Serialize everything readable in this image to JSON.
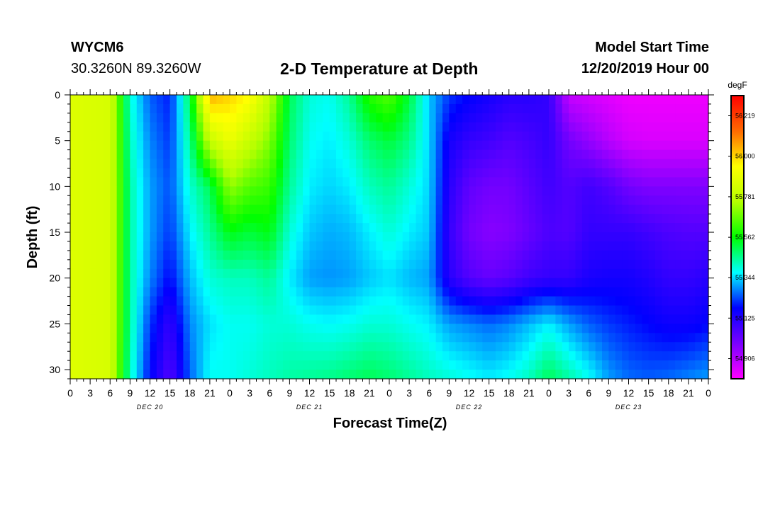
{
  "header": {
    "station": "WYCM6",
    "coords": "30.3260N 89.3260W",
    "title": "2-D Temperature at Depth",
    "start_label": "Model Start Time",
    "start_value": "12/20/2019 Hour 00"
  },
  "colors": {
    "colormap": [
      "#ff00ff",
      "#7a00ff",
      "#0000ff",
      "#00ffff",
      "#00ff00",
      "#b4ff00",
      "#ffff00",
      "#ff6a00",
      "#ff0000"
    ]
  },
  "chart_data": {
    "type": "heatmap",
    "title": "2-D Temperature at Depth",
    "xlabel": "Forecast Time(Z)",
    "ylabel": "Depth (ft)",
    "x_range_hours": [
      0,
      96
    ],
    "y_range_ft": [
      0,
      31
    ],
    "y_reversed": true,
    "x_tick_labels": [
      "0",
      "3",
      "6",
      "9",
      "12",
      "15",
      "18",
      "21",
      "0",
      "3",
      "6",
      "9",
      "12",
      "15",
      "18",
      "21",
      "0",
      "3",
      "6",
      "9",
      "12",
      "15",
      "18",
      "21",
      "0",
      "3",
      "6",
      "9",
      "12",
      "15",
      "18",
      "21",
      "0"
    ],
    "y_tick_values": [
      0,
      5,
      10,
      15,
      20,
      25,
      30
    ],
    "y_tick_labels": [
      "0",
      "5",
      "10",
      "15",
      "20",
      "25",
      "30"
    ],
    "date_labels": [
      {
        "label": "DEC 20",
        "hour": 12
      },
      {
        "label": "DEC 21",
        "hour": 36
      },
      {
        "label": "DEC 22",
        "hour": 60
      },
      {
        "label": "DEC 23",
        "hour": 84
      }
    ],
    "colorbar": {
      "unit": "degF",
      "min": 54.797,
      "max": 56.328,
      "labels": [
        "56.219",
        "56.000",
        "55.781",
        "55.562",
        "55.344",
        "55.125",
        "54.906"
      ],
      "label_values": [
        56.219,
        56.0,
        55.781,
        55.562,
        55.344,
        55.125,
        54.906
      ]
    },
    "depths_ft": [
      0,
      5,
      10,
      15,
      20,
      25,
      31
    ],
    "hours": [
      0,
      6,
      9,
      12,
      15,
      18,
      21,
      24,
      27,
      30,
      33,
      36,
      39,
      42,
      45,
      48,
      51,
      54,
      57,
      60,
      63,
      66,
      69,
      72,
      75,
      78,
      81,
      84,
      87,
      90,
      93,
      96
    ],
    "temperature_degF": [
      [
        55.86,
        55.86,
        55.86,
        55.86,
        55.86,
        55.86,
        55.86
      ],
      [
        55.84,
        55.84,
        55.84,
        55.84,
        55.84,
        55.84,
        55.84
      ],
      [
        55.4,
        55.42,
        55.44,
        55.44,
        55.44,
        55.44,
        55.42
      ],
      [
        55.25,
        55.28,
        55.3,
        55.3,
        55.28,
        55.22,
        55.18
      ],
      [
        55.2,
        55.22,
        55.24,
        55.22,
        55.18,
        55.1,
        55.05
      ],
      [
        55.5,
        55.45,
        55.4,
        55.36,
        55.32,
        55.28,
        55.25
      ],
      [
        56.05,
        55.8,
        55.5,
        55.45,
        55.4,
        55.35,
        55.38
      ],
      [
        56.0,
        55.9,
        55.72,
        55.55,
        55.42,
        55.38,
        55.38
      ],
      [
        55.95,
        55.8,
        55.65,
        55.52,
        55.42,
        55.38,
        55.4
      ],
      [
        55.78,
        55.7,
        55.62,
        55.55,
        55.45,
        55.4,
        55.42
      ],
      [
        55.5,
        55.48,
        55.45,
        55.4,
        55.36,
        55.4,
        55.44
      ],
      [
        55.4,
        55.38,
        55.36,
        55.33,
        55.3,
        55.38,
        55.45
      ],
      [
        55.38,
        55.36,
        55.34,
        55.31,
        55.29,
        55.37,
        55.46
      ],
      [
        55.45,
        55.4,
        55.36,
        55.32,
        55.3,
        55.38,
        55.48
      ],
      [
        55.6,
        55.48,
        55.42,
        55.36,
        55.33,
        55.4,
        55.5
      ],
      [
        55.65,
        55.52,
        55.45,
        55.4,
        55.35,
        55.4,
        55.48
      ],
      [
        55.52,
        55.46,
        55.4,
        55.36,
        55.32,
        55.38,
        55.45
      ],
      [
        55.33,
        55.34,
        55.34,
        55.33,
        55.3,
        55.36,
        55.42
      ],
      [
        55.22,
        55.15,
        55.12,
        55.1,
        55.12,
        55.3,
        55.4
      ],
      [
        55.18,
        55.1,
        55.03,
        55.0,
        55.05,
        55.28,
        55.38
      ],
      [
        55.15,
        55.08,
        55.0,
        54.97,
        55.02,
        55.26,
        55.36
      ],
      [
        55.12,
        55.05,
        55.0,
        54.98,
        55.04,
        55.28,
        55.38
      ],
      [
        55.12,
        55.07,
        55.04,
        55.02,
        55.08,
        55.32,
        55.42
      ],
      [
        55.1,
        55.1,
        55.08,
        55.06,
        55.1,
        55.36,
        55.5
      ],
      [
        54.88,
        55.0,
        55.05,
        55.05,
        55.1,
        55.3,
        55.44
      ],
      [
        54.86,
        54.95,
        55.08,
        55.1,
        55.14,
        55.25,
        55.38
      ],
      [
        54.84,
        54.9,
        55.05,
        55.1,
        55.15,
        55.22,
        55.3
      ],
      [
        54.82,
        54.86,
        55.0,
        55.1,
        55.15,
        55.2,
        55.26
      ],
      [
        54.82,
        54.85,
        54.98,
        55.08,
        55.13,
        55.18,
        55.25
      ],
      [
        54.82,
        54.85,
        54.98,
        55.06,
        55.1,
        55.16,
        55.26
      ],
      [
        54.82,
        54.85,
        54.98,
        55.05,
        55.1,
        55.16,
        55.28
      ],
      [
        54.82,
        54.85,
        54.98,
        55.05,
        55.12,
        55.18,
        55.3
      ]
    ]
  }
}
